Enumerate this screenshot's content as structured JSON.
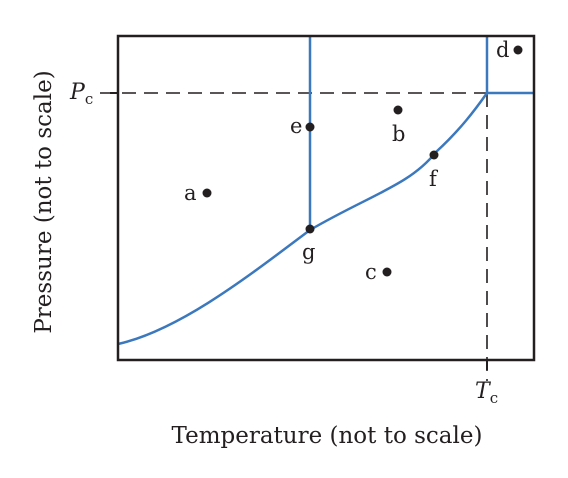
{
  "x_axis_label": "Temperature (not to scale)",
  "y_axis_label": "Pressure (not to scale)",
  "critical_pressure": {
    "symbol": "P",
    "subscript": "c"
  },
  "critical_temperature": {
    "symbol": "T",
    "subscript": "c"
  },
  "points": [
    {
      "id": "a",
      "label": "a"
    },
    {
      "id": "b",
      "label": "b"
    },
    {
      "id": "c",
      "label": "c"
    },
    {
      "id": "d",
      "label": "d"
    },
    {
      "id": "e",
      "label": "e"
    },
    {
      "id": "f",
      "label": "f"
    },
    {
      "id": "g",
      "label": "g"
    }
  ],
  "colors": {
    "phase_boundary": "#3b78bd",
    "ink": "#231f20"
  }
}
